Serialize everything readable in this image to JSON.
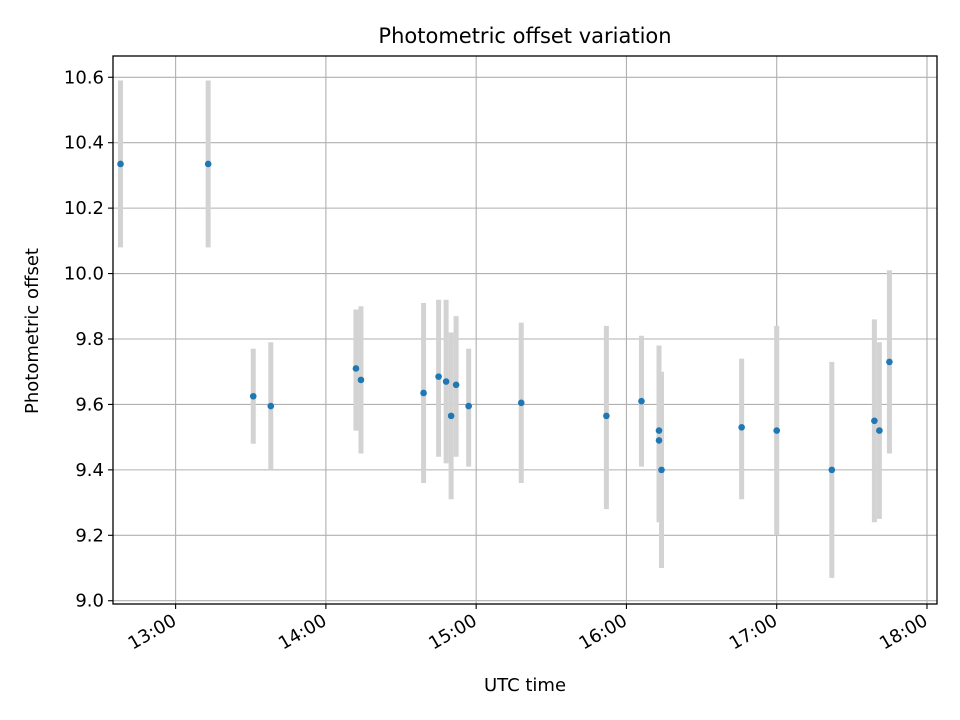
{
  "chart_data": {
    "type": "scatter",
    "title": "Photometric offset variation",
    "xlabel": "UTC time",
    "ylabel": "Photometric offset",
    "xlim": [
      "12:35",
      "18:04"
    ],
    "ylim": [
      8.99,
      10.665
    ],
    "x_ticks": [
      "13:00",
      "14:00",
      "15:00",
      "16:00",
      "17:00",
      "18:00"
    ],
    "y_ticks": [
      "9.0",
      "9.2",
      "9.4",
      "9.6",
      "9.8",
      "10.0",
      "10.2",
      "10.4",
      "10.6"
    ],
    "grid": true,
    "colors": {
      "points": "#1f77b4",
      "errorbars": "#d3d3d3",
      "grid": "#b0b0b0"
    },
    "series": [
      {
        "points": [
          {
            "x": "12:38",
            "y": 10.335,
            "ylo": 10.08,
            "yhi": 10.59
          },
          {
            "x": "13:13",
            "y": 10.335,
            "ylo": 10.08,
            "yhi": 10.59
          },
          {
            "x": "13:31",
            "y": 9.625,
            "ylo": 9.48,
            "yhi": 9.77
          },
          {
            "x": "13:38",
            "y": 9.595,
            "ylo": 9.4,
            "yhi": 9.79
          },
          {
            "x": "14:12",
            "y": 9.71,
            "ylo": 9.52,
            "yhi": 9.89
          },
          {
            "x": "14:14",
            "y": 9.675,
            "ylo": 9.45,
            "yhi": 9.9
          },
          {
            "x": "14:39",
            "y": 9.635,
            "ylo": 9.36,
            "yhi": 9.91
          },
          {
            "x": "14:45",
            "y": 9.685,
            "ylo": 9.44,
            "yhi": 9.92
          },
          {
            "x": "14:48",
            "y": 9.67,
            "ylo": 9.42,
            "yhi": 9.92
          },
          {
            "x": "14:50",
            "y": 9.565,
            "ylo": 9.31,
            "yhi": 9.82
          },
          {
            "x": "14:52",
            "y": 9.66,
            "ylo": 9.44,
            "yhi": 9.87
          },
          {
            "x": "14:57",
            "y": 9.595,
            "ylo": 9.41,
            "yhi": 9.77
          },
          {
            "x": "15:18",
            "y": 9.605,
            "ylo": 9.36,
            "yhi": 9.85
          },
          {
            "x": "15:52",
            "y": 9.565,
            "ylo": 9.28,
            "yhi": 9.84
          },
          {
            "x": "16:06",
            "y": 9.61,
            "ylo": 9.41,
            "yhi": 9.81
          },
          {
            "x": "16:13",
            "y": 9.49,
            "ylo": 9.24,
            "yhi": 9.77
          },
          {
            "x": "16:13",
            "y": 9.52,
            "ylo": 9.25,
            "yhi": 9.78
          },
          {
            "x": "16:14",
            "y": 9.4,
            "ylo": 9.1,
            "yhi": 9.7
          },
          {
            "x": "16:46",
            "y": 9.53,
            "ylo": 9.31,
            "yhi": 9.74
          },
          {
            "x": "17:00",
            "y": 9.52,
            "ylo": 9.2,
            "yhi": 9.84
          },
          {
            "x": "17:22",
            "y": 9.4,
            "ylo": 9.07,
            "yhi": 9.73
          },
          {
            "x": "17:39",
            "y": 9.55,
            "ylo": 9.24,
            "yhi": 9.86
          },
          {
            "x": "17:41",
            "y": 9.52,
            "ylo": 9.25,
            "yhi": 9.79
          },
          {
            "x": "17:45",
            "y": 9.73,
            "ylo": 9.45,
            "yhi": 10.01
          }
        ]
      }
    ]
  }
}
